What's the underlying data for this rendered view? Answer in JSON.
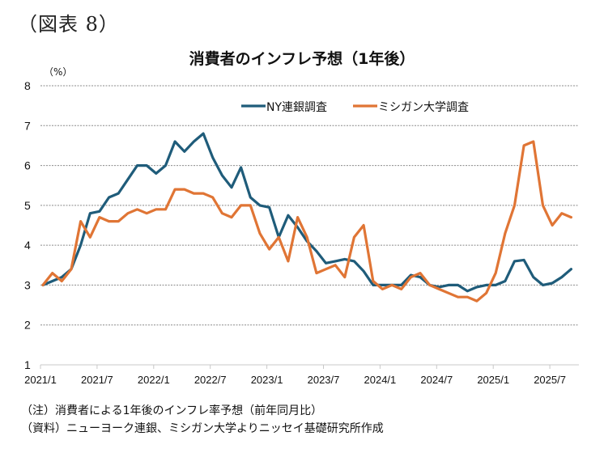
{
  "figure_label": "（図表 8）",
  "notes": {
    "note": "（注）消費者による1年後のインフレ率予想（前年同月比）",
    "source": "（資料）ニューヨーク連銀、ミシガン大学よりニッセイ基礎研究所作成"
  },
  "chart_data": {
    "type": "line",
    "title": "消費者のインフレ予想（1年後）",
    "ylabel": "（%）",
    "xlabel": "",
    "ylim": [
      1,
      8
    ],
    "yticks": [
      1,
      2,
      3,
      4,
      5,
      6,
      7,
      8
    ],
    "grid": true,
    "legend_position": "top-center",
    "x_start": "2021/1",
    "x_end": "2025/9",
    "x_frequency": "monthly",
    "xtick_labels": [
      "2021/1",
      "2021/7",
      "2022/1",
      "2022/7",
      "2023/1",
      "2023/7",
      "2024/1",
      "2024/7",
      "2025/1",
      "2025/7"
    ],
    "series": [
      {
        "name": "NY連銀調査",
        "color": "#1f5c7a",
        "values": [
          3.0,
          3.1,
          3.2,
          3.4,
          4.0,
          4.8,
          4.85,
          5.2,
          5.3,
          5.65,
          6.0,
          6.0,
          5.8,
          6.0,
          6.6,
          6.35,
          6.6,
          6.8,
          6.2,
          5.75,
          5.45,
          5.95,
          5.2,
          5.0,
          4.95,
          4.2,
          4.75,
          4.45,
          4.1,
          3.85,
          3.55,
          3.6,
          3.65,
          3.6,
          3.35,
          3.0,
          3.0,
          3.0,
          3.0,
          3.25,
          3.2,
          3.0,
          2.95,
          3.0,
          3.0,
          2.85,
          2.95,
          3.0,
          3.0,
          3.1,
          3.6,
          3.63,
          3.2,
          3.0,
          3.05,
          3.2,
          3.4
        ]
      },
      {
        "name": "ミシガン大学調査",
        "color": "#e07535",
        "values": [
          3.0,
          3.3,
          3.1,
          3.4,
          4.6,
          4.2,
          4.7,
          4.6,
          4.6,
          4.8,
          4.9,
          4.8,
          4.9,
          4.9,
          5.4,
          5.4,
          5.3,
          5.3,
          5.2,
          4.8,
          4.7,
          5.0,
          5.0,
          4.3,
          3.9,
          4.2,
          3.6,
          4.7,
          4.2,
          3.3,
          3.4,
          3.5,
          3.2,
          4.2,
          4.5,
          3.1,
          2.9,
          3.0,
          2.9,
          3.2,
          3.3,
          3.0,
          2.9,
          2.8,
          2.7,
          2.7,
          2.6,
          2.8,
          3.3,
          4.3,
          5.0,
          6.5,
          6.6,
          5.0,
          4.5,
          4.8,
          4.7
        ]
      }
    ]
  }
}
